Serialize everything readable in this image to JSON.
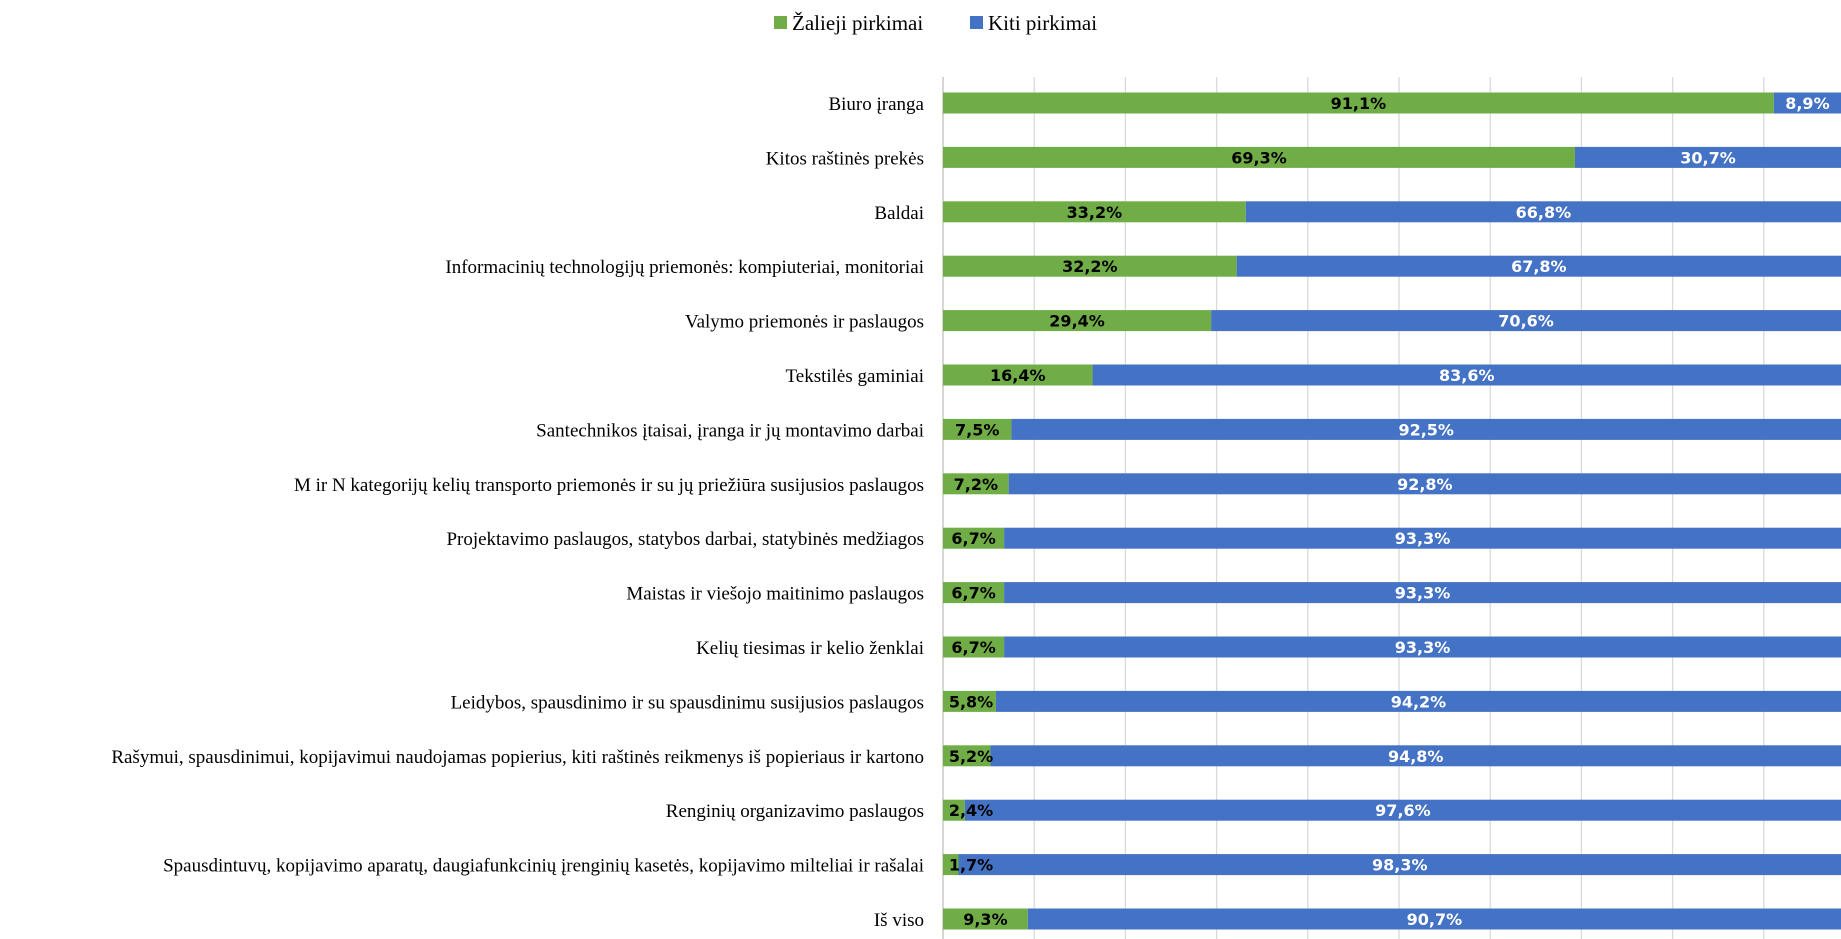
{
  "chart_data": {
    "type": "bar",
    "orientation": "horizontal",
    "stacked": "percent",
    "legend": {
      "placement": "top",
      "items": [
        {
          "name": "Žalieji pirkimai",
          "color": "#70ad47"
        },
        {
          "name": "Kiti pirkimai",
          "color": "#4472c4"
        }
      ]
    },
    "categories": [
      "Biuro įranga",
      "Kitos raštinės prekės",
      "Baldai",
      "Informacinių technologijų priemonės: kompiuteriai, monitoriai",
      "Valymo priemonės ir paslaugos",
      "Tekstilės gaminiai",
      "Santechnikos įtaisai, įranga ir jų montavimo darbai",
      "M ir N kategorijų kelių transporto priemonės ir su jų priežiūra susijusios paslaugos",
      "Projektavimo paslaugos, statybos darbai, statybinės medžiagos",
      "Maistas ir viešojo maitinimo paslaugos",
      "Kelių tiesimas ir kelio ženklai",
      "Leidybos, spausdinimo ir su spausdinimu susijusios paslaugos",
      "Rašymui, spausdinimui, kopijavimui naudojamas popierius, kiti raštinės reikmenys iš popieriaus ir kartono",
      "Renginių organizavimo paslaugos",
      "Spausdintuvų, kopijavimo aparatų, daugiafunkcinių įrenginių kasetės, kopijavimo milteliai ir rašalai",
      "Iš viso"
    ],
    "series": [
      {
        "name": "Žalieji pirkimai",
        "color": "#70ad47",
        "values": [
          91.1,
          69.3,
          33.2,
          32.2,
          29.4,
          16.4,
          7.5,
          7.2,
          6.7,
          6.7,
          6.7,
          5.8,
          5.2,
          2.4,
          1.7,
          9.3
        ],
        "labels": [
          "91,1%",
          "69,3%",
          "33,2%",
          "32,2%",
          "29,4%",
          "16,4%",
          "7,5%",
          "7,2%",
          "6,7%",
          "6,7%",
          "6,7%",
          "5,8%",
          "5,2%",
          "2,4%",
          "1,7%",
          "9,3%"
        ]
      },
      {
        "name": "Kiti pirkimai",
        "color": "#4472c4",
        "values": [
          8.9,
          30.7,
          66.8,
          67.8,
          70.6,
          83.6,
          92.5,
          92.8,
          93.3,
          93.3,
          93.3,
          94.2,
          94.8,
          97.6,
          98.3,
          90.7
        ],
        "labels": [
          "8,9%",
          "30,7%",
          "66,8%",
          "67,8%",
          "70,6%",
          "83,6%",
          "92,5%",
          "92,8%",
          "93,3%",
          "93,3%",
          "93,3%",
          "94,2%",
          "94,8%",
          "97,6%",
          "98,3%",
          "90,7%"
        ]
      }
    ],
    "xlim": [
      0,
      100
    ],
    "grid": true,
    "gridline_color": "#d9d9d9"
  }
}
